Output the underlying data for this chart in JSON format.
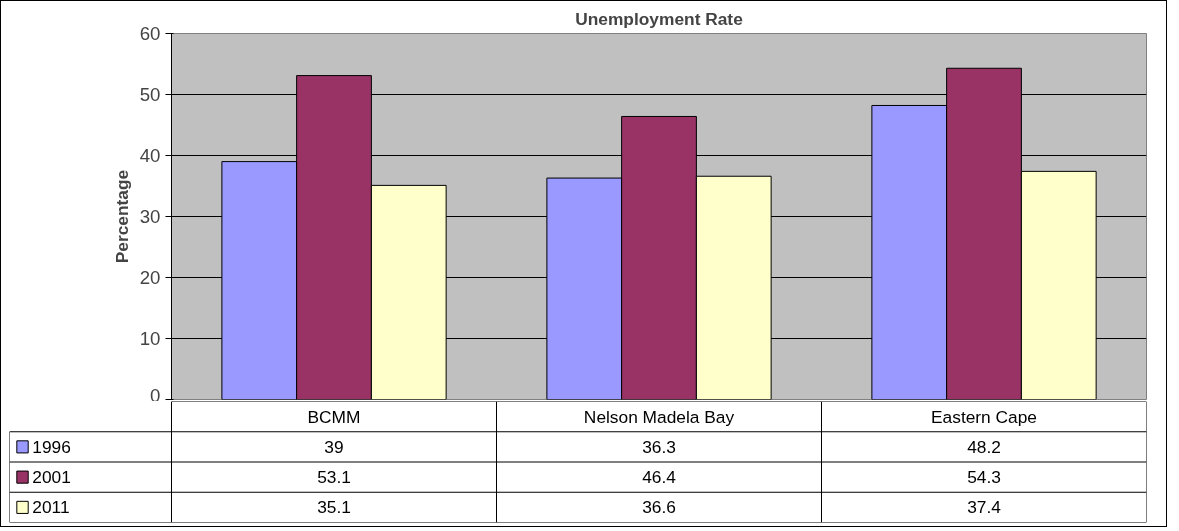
{
  "chart_data": {
    "type": "bar",
    "title": "Unemployment Rate",
    "ylabel": "Percentage",
    "categories": [
      "BCMM",
      "Nelson Madela Bay",
      "Eastern Cape"
    ],
    "series": [
      {
        "name": "1996",
        "color": "#9999ff",
        "values": [
          39,
          36.3,
          48.2
        ]
      },
      {
        "name": "2001",
        "color": "#993366",
        "values": [
          53.1,
          46.4,
          54.3
        ]
      },
      {
        "name": "2011",
        "color": "#ffffcc",
        "values": [
          35.1,
          36.6,
          37.4
        ]
      }
    ],
    "ylim": [
      0,
      60
    ],
    "yticks": [
      0,
      10,
      20,
      30,
      40,
      50,
      60
    ],
    "grid": "y",
    "legend": "bottom",
    "data_labels": true
  }
}
